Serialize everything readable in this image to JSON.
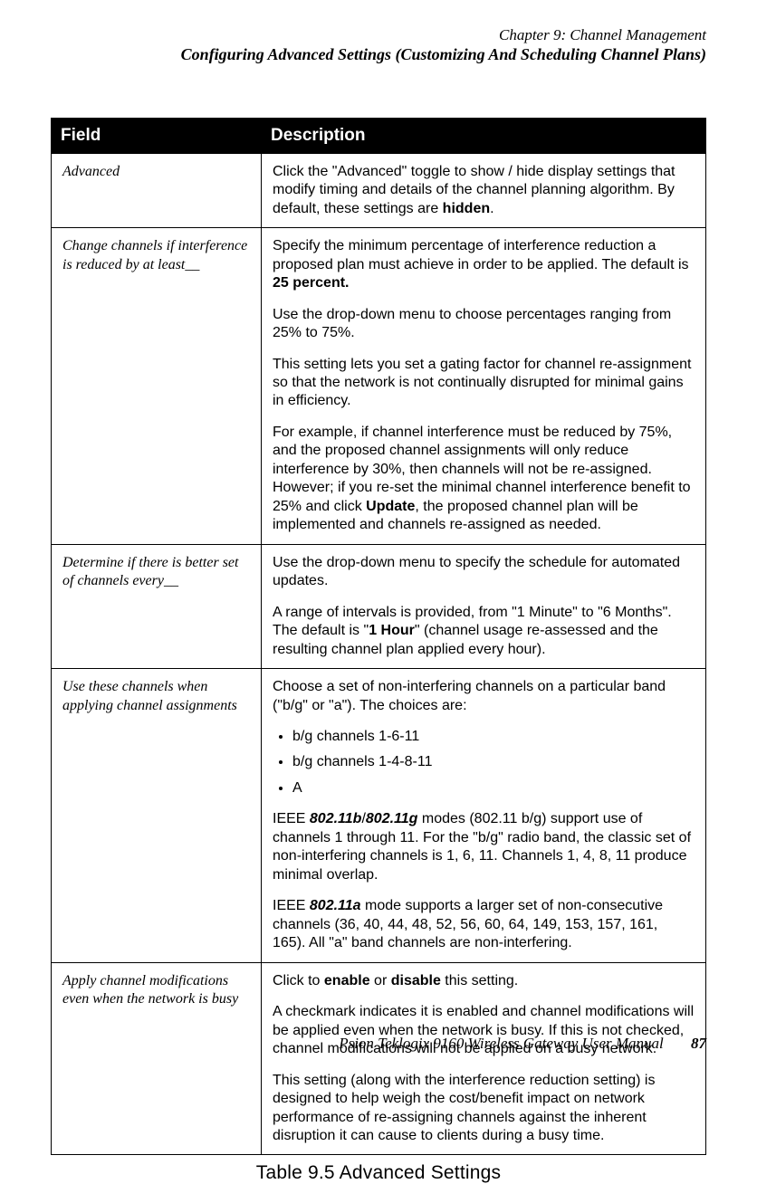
{
  "header": {
    "chapter": "Chapter 9:  Channel Management",
    "section": "Configuring Advanced Settings (Customizing And Scheduling Channel Plans)"
  },
  "table": {
    "head_field": "Field",
    "head_desc": "Description",
    "rows": [
      {
        "field": "Advanced",
        "desc_html": "<p>Click the \"Advanced\" toggle to show / hide display settings that modify timing and details of the channel planning algorithm. By default, these settings are <b>hidden</b>.</p>"
      },
      {
        "field": " Change channels if interference is reduced by at least__",
        "desc_html": "<p>Specify the minimum percentage of interference reduction a proposed plan must achieve in order to be applied. The default is <b>25 percent.</b></p><p>Use the drop-down menu to choose percentages ranging from 25% to 75%.</p><p>This setting lets you set a gating factor for channel re-assignment so that the network is not continually disrupted for minimal gains in efficiency.</p><p>For example, if channel interference must be reduced by 75%, and the proposed channel assignments will only reduce interference by 30%, then channels will not be re-assigned. However; if you re-set the minimal channel interference benefit to 25% and click <b>Update</b>, the proposed channel plan will be implemented and channels re-assigned as needed.</p>"
      },
      {
        "field": "Determine if there is better set of channels every__",
        "desc_html": "<p>Use the drop-down menu to specify the schedule for automated updates.</p><p>A range of intervals is provided, from \"1 Minute\" to \"6 Months\". The default is \"<b>1 Hour</b>\" (channel usage re-assessed and the resulting channel plan applied every hour).</p>"
      },
      {
        "field": "Use these channels when applying channel assignments",
        "desc_html": "<p>Choose a set of non-interfering channels on a particular band (\"b/g\" or \"a\"). The choices are:</p><ul><li>b/g channels 1-6-11</li><li>b/g channels 1-4-8-11</li><li>A</li></ul><p>IEEE <em class=\"bi\">802.11b</em>/<em class=\"bi\">802.11g</em> modes (802.11 b/g) support use of channels 1 through 11. For the \"b/g\" radio band, the classic set of non-interfering channels is 1, 6, 11. Channels 1, 4, 8, 11 produce minimal overlap.</p><p>IEEE <em class=\"bi\">802.11a</em> mode supports a larger set of non-consecutive channels (36, 40, 44, 48, 52, 56, 60, 64, 149, 153, 157, 161, 165). All \"a\" band channels are non-interfering.</p>"
      },
      {
        "field": "Apply channel modifications even when the network is busy",
        "desc_html": "<p>Click to <b>enable</b> or <b>disable</b> this setting.</p><p>A checkmark indicates it is enabled and channel modifications will be applied even when the network is busy. If this is not checked, channel modifications will not be applied on a busy network.</p><p>This setting (along with the interference reduction setting) is designed to help weigh the cost/benefit impact on network performance of re-assigning channels against the inherent disruption it can cause to clients during a busy time.</p>"
      }
    ]
  },
  "caption": "Table 9.5 Advanced Settings",
  "footer": {
    "text": "Psion Teklogix 9160 Wireless Gateway User Manual",
    "page": "87"
  }
}
